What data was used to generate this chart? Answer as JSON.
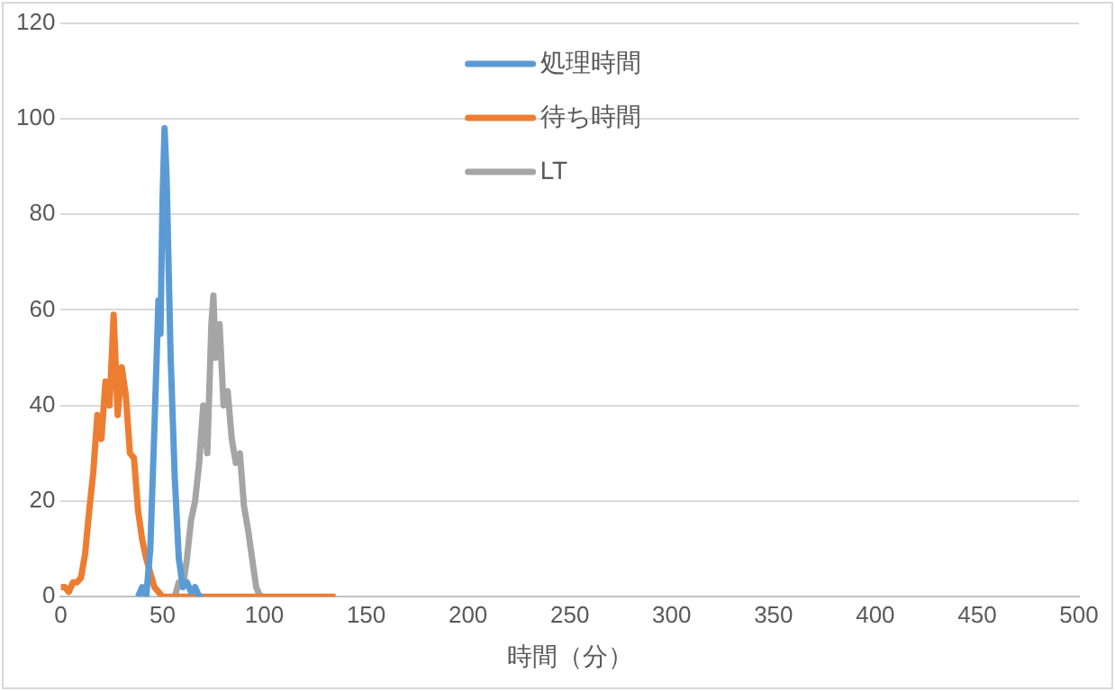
{
  "chart_data": {
    "type": "line",
    "xlabel": "時間（分）",
    "xlim": [
      0,
      500
    ],
    "xticks": [
      0,
      50,
      100,
      150,
      200,
      250,
      300,
      350,
      400,
      450,
      500
    ],
    "ylim": [
      0,
      120
    ],
    "yticks": [
      0,
      20,
      40,
      60,
      80,
      100,
      120
    ],
    "grid": "y",
    "legend": "top",
    "marker": "none",
    "line_style": "solid",
    "series": [
      {
        "name": "処理時間",
        "color": "#5b9bd5",
        "x": [
          38,
          40,
          42,
          44,
          46,
          48,
          49,
          50,
          51,
          52,
          54,
          56,
          58,
          60,
          62,
          64,
          66,
          68,
          70
        ],
        "values": [
          0,
          2,
          0,
          10,
          35,
          62,
          55,
          83,
          98,
          88,
          50,
          25,
          8,
          2,
          3,
          1,
          2,
          0,
          0
        ]
      },
      {
        "name": "待ち時間",
        "color": "#ed7d31",
        "x": [
          0,
          2,
          4,
          6,
          8,
          10,
          12,
          14,
          16,
          18,
          20,
          22,
          24,
          26,
          28,
          30,
          32,
          34,
          36,
          38,
          40,
          42,
          44,
          46,
          48,
          50,
          135
        ],
        "values": [
          2,
          2,
          1,
          3,
          3,
          4,
          9,
          18,
          26,
          38,
          33,
          45,
          40,
          59,
          38,
          48,
          42,
          30,
          29,
          18,
          12,
          8,
          5,
          2,
          1,
          0,
          0
        ]
      },
      {
        "name": "LT",
        "color": "#a5a5a5",
        "x": [
          56,
          58,
          60,
          62,
          64,
          66,
          68,
          70,
          72,
          74,
          75,
          76,
          78,
          80,
          82,
          84,
          86,
          88,
          90,
          92,
          94,
          96,
          98,
          100
        ],
        "values": [
          0,
          3,
          2,
          8,
          16,
          20,
          28,
          40,
          30,
          57,
          63,
          50,
          57,
          40,
          43,
          33,
          28,
          30,
          19,
          14,
          8,
          2,
          0,
          0
        ]
      }
    ]
  }
}
